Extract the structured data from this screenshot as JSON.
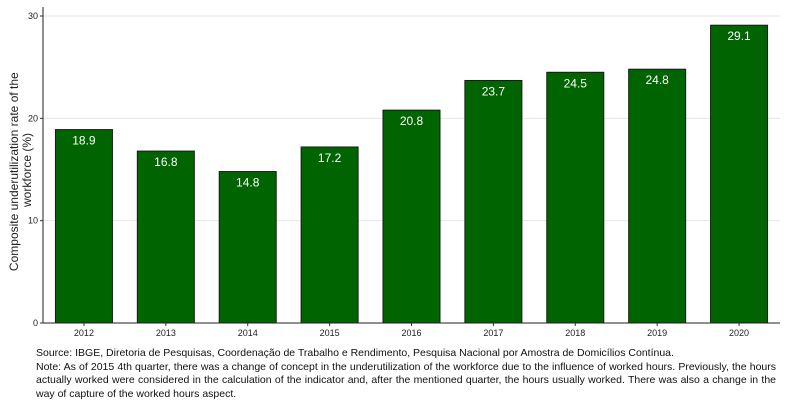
{
  "chart_data": {
    "type": "bar",
    "categories": [
      "2012",
      "2013",
      "2014",
      "2015",
      "2016",
      "2017",
      "2018",
      "2019",
      "2020"
    ],
    "values": [
      18.9,
      16.8,
      14.8,
      17.2,
      20.8,
      23.7,
      24.5,
      24.8,
      29.1
    ],
    "data_labels": [
      "18.9",
      "16.8",
      "14.8",
      "17.2",
      "20.8",
      "23.7",
      "24.5",
      "24.8",
      "29.1"
    ],
    "ylabel_line1": "Composite underutilization rate of the",
    "ylabel_line2": "workforce (%)",
    "ylim": [
      0,
      30
    ],
    "yticks": [
      0,
      10,
      20,
      30
    ],
    "ytick_labels": [
      "0",
      "10",
      "20",
      "30"
    ],
    "grid": true,
    "bar_color": "#006400",
    "bar_stroke": "#1a1a1a",
    "grid_color": "#e6e6e6"
  },
  "notes": {
    "source": "Source: IBGE, Diretoria de Pesquisas, Coordenação de Trabalho e Rendimento, Pesquisa Nacional por Amostra de Domicílios Contínua.",
    "note": "Note: As of 2015 4th quarter, there was a change of concept in the underutilization of the workforce due to the influence of worked hours. Previously, the hours actually worked were considered in the calculation of the indicator and, after the mentioned quarter, the hours usually worked. There was also a change in the way of capture of the worked hours aspect."
  }
}
